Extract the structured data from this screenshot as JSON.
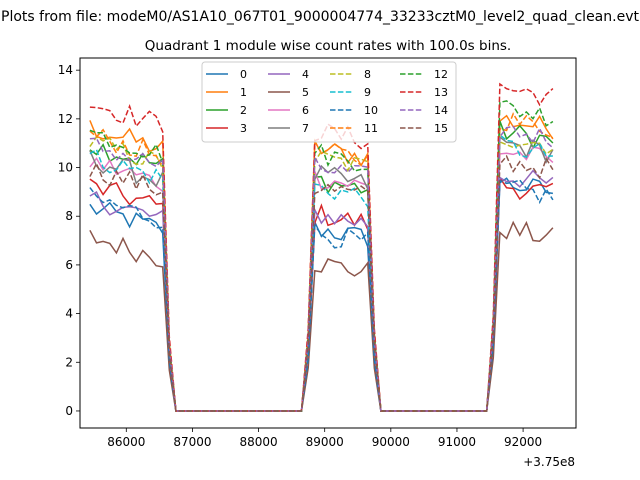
{
  "suptitle": "Plots from file: modeM0/AS1A10_067T01_9000004774_33233cztM0_level2_quad_clean.evt",
  "chart_data": {
    "type": "line",
    "title": "Quadrant 1 module wise count rates with 100.0s bins.",
    "xlabel": "",
    "ylabel": "",
    "x_offset_label": "+3.75e8",
    "xlim": [
      85300,
      92800
    ],
    "ylim": [
      -0.7,
      14.5
    ],
    "x_ticks": [
      86000,
      87000,
      88000,
      89000,
      90000,
      91000,
      92000
    ],
    "x_tick_labels": [
      "86000",
      "87000",
      "88000",
      "89000",
      "90000",
      "91000",
      "92000"
    ],
    "y_ticks": [
      0,
      2,
      4,
      6,
      8,
      10,
      12,
      14
    ],
    "y_tick_labels": [
      "0",
      "2",
      "4",
      "6",
      "8",
      "10",
      "12",
      "14"
    ],
    "grid": false,
    "legend": {
      "location": "top-center",
      "columns": 4
    },
    "segments": [
      {
        "x_start": 85450,
        "x_end": 86550,
        "count": 12
      },
      {
        "x_start": 88850,
        "x_end": 89650,
        "count": 9
      },
      {
        "x_start": 91650,
        "x_end": 92450,
        "count": 9
      }
    ],
    "series": [
      {
        "name": "0",
        "color": "#1f77b4",
        "dash": "solid",
        "segment_means": [
          7.9,
          7.3,
          9.2
        ]
      },
      {
        "name": "1",
        "color": "#ff7f0e",
        "dash": "solid",
        "segment_means": [
          11.2,
          10.6,
          11.8
        ]
      },
      {
        "name": "2",
        "color": "#2ca02c",
        "dash": "solid",
        "segment_means": [
          10.5,
          9.3,
          11.3
        ]
      },
      {
        "name": "3",
        "color": "#d62728",
        "dash": "solid",
        "segment_means": [
          8.8,
          7.9,
          9.1
        ]
      },
      {
        "name": "4",
        "color": "#9467bd",
        "dash": "solid",
        "segment_means": [
          8.3,
          7.9,
          9.5
        ]
      },
      {
        "name": "5",
        "color": "#8c564b",
        "dash": "solid",
        "segment_means": [
          6.7,
          5.9,
          7.3
        ]
      },
      {
        "name": "6",
        "color": "#e377c2",
        "dash": "solid",
        "segment_means": [
          9.8,
          9.4,
          10.5
        ]
      },
      {
        "name": "7",
        "color": "#7f7f7f",
        "dash": "solid",
        "segment_means": [
          9.9,
          9.5,
          10.8
        ]
      },
      {
        "name": "8",
        "color": "#bcbd22",
        "dash": "dashed",
        "segment_means": [
          10.6,
          10.2,
          11.1
        ]
      },
      {
        "name": "9",
        "color": "#17becf",
        "dash": "dashed",
        "segment_means": [
          10.0,
          9.0,
          10.7
        ]
      },
      {
        "name": "10",
        "color": "#1f77b4",
        "dash": "dashed",
        "segment_means": [
          8.3,
          7.1,
          9.0
        ]
      },
      {
        "name": "11",
        "color": "#ff7f0e",
        "dash": "dashed",
        "segment_means": [
          10.9,
          10.5,
          11.8
        ]
      },
      {
        "name": "12",
        "color": "#2ca02c",
        "dash": "dashed",
        "segment_means": [
          11.0,
          10.4,
          12.3
        ]
      },
      {
        "name": "13",
        "color": "#d62728",
        "dash": "dashed",
        "segment_means": [
          12.2,
          11.3,
          13.1
        ]
      },
      {
        "name": "14",
        "color": "#9467bd",
        "dash": "dashed",
        "segment_means": [
          10.5,
          9.8,
          11.4
        ]
      },
      {
        "name": "15",
        "color": "#8c564b",
        "dash": "dashed",
        "segment_means": [
          9.5,
          9.0,
          10.1
        ]
      }
    ]
  }
}
